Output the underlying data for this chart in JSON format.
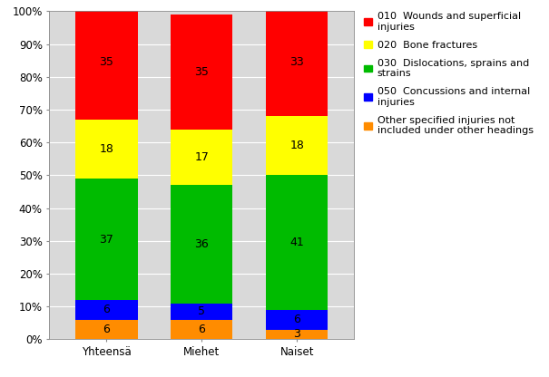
{
  "categories": [
    "Yhteensä",
    "Miehet",
    "Naiset"
  ],
  "series": [
    {
      "label": "010  Wounds and superficial\ninjuries",
      "values": [
        35,
        35,
        33
      ],
      "color": "#FF0000"
    },
    {
      "label": "020  Bone fractures",
      "values": [
        18,
        17,
        18
      ],
      "color": "#FFFF00"
    },
    {
      "label": "030  Dislocations, sprains and\nstrains",
      "values": [
        37,
        36,
        41
      ],
      "color": "#00BB00"
    },
    {
      "label": "050  Concussions and internal\ninjuries",
      "values": [
        6,
        5,
        6
      ],
      "color": "#0000FF"
    },
    {
      "label": "Other specified injuries not\nincluded under other headings",
      "values": [
        6,
        6,
        3
      ],
      "color": "#FF8C00"
    }
  ],
  "ylim": [
    0,
    100
  ],
  "yticks": [
    0,
    10,
    20,
    30,
    40,
    50,
    60,
    70,
    80,
    90,
    100
  ],
  "ytick_labels": [
    "0%",
    "10%",
    "20%",
    "30%",
    "40%",
    "50%",
    "60%",
    "70%",
    "80%",
    "90%",
    "100%"
  ],
  "bar_width": 0.65,
  "plot_bg_color": "#D9D9D9",
  "fig_bg_color": "#FFFFFF",
  "grid_color": "#FFFFFF",
  "label_fontsize": 9,
  "legend_fontsize": 8,
  "tick_fontsize": 8.5,
  "figsize": [
    6.05,
    4.16
  ],
  "dpi": 100
}
